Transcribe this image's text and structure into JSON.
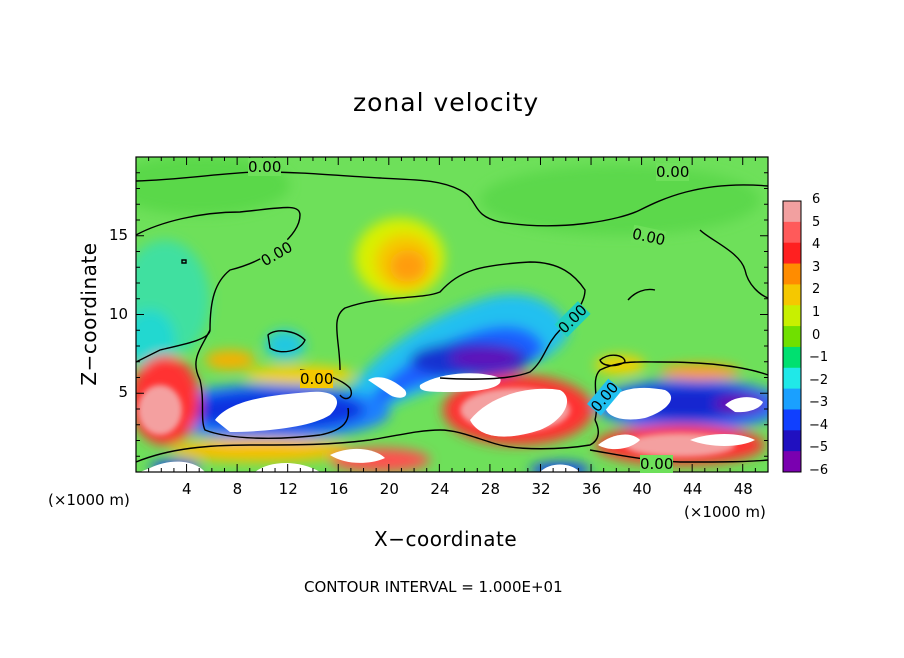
{
  "chart_data": {
    "type": "heatmap",
    "title": "zonal velocity",
    "xlabel": "X−coordinate",
    "ylabel": "Z−coordinate",
    "x_unit": "(×1000 m)",
    "z_unit": "(×1000 m)",
    "xlim": [
      0,
      50
    ],
    "ylim": [
      0,
      20
    ],
    "x_ticks": [
      "4",
      "8",
      "12",
      "16",
      "20",
      "24",
      "28",
      "32",
      "36",
      "40",
      "44",
      "48"
    ],
    "x_tick_values": [
      4,
      8,
      12,
      16,
      20,
      24,
      28,
      32,
      36,
      40,
      44,
      48
    ],
    "y_ticks": [
      "5",
      "10",
      "15"
    ],
    "y_tick_values": [
      5,
      10,
      15
    ],
    "colorbar": {
      "ticks": [
        "6",
        "5",
        "4",
        "3",
        "2",
        "1",
        "0",
        "−1",
        "−2",
        "−3",
        "−4",
        "−5",
        "−6"
      ],
      "values": [
        6,
        5,
        4,
        3,
        2,
        1,
        0,
        -1,
        -2,
        -3,
        -4,
        -5,
        -6
      ],
      "colors": [
        "#f2a0a0",
        "#ff5a5a",
        "#ff2020",
        "#ff8c00",
        "#f5c800",
        "#c8f000",
        "#70e000",
        "#00e070",
        "#20e8e8",
        "#1aa0ff",
        "#1040ff",
        "#2010c0",
        "#7a00b0"
      ]
    },
    "contour_labels": [
      "0.00",
      "0.00",
      "0.00",
      "0.00",
      "0.00",
      "0.00",
      "0.00",
      "0.00"
    ],
    "footer": "CONTOUR INTERVAL = 1.000E+01",
    "approximate_features": [
      {
        "x": 22,
        "z": 13.5,
        "value": 3
      },
      {
        "x": 28,
        "z": 8.5,
        "value": -5
      },
      {
        "x": 10,
        "z": 4,
        "value": -6
      },
      {
        "x": 4,
        "z": 3,
        "value": 6
      },
      {
        "x": 30,
        "z": 3.5,
        "value": 6
      },
      {
        "x": 42,
        "z": 1.5,
        "value": 6
      },
      {
        "x": 41,
        "z": 4.5,
        "value": -6
      },
      {
        "x": 3,
        "z": 10,
        "value": -2
      }
    ]
  }
}
